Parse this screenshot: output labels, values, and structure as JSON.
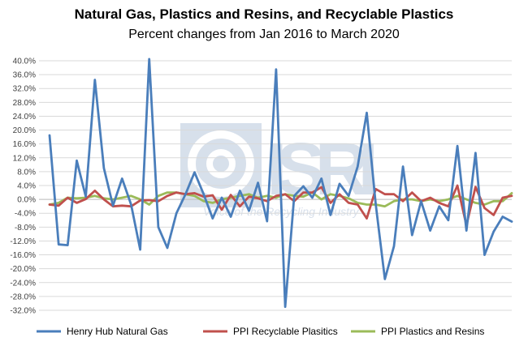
{
  "chart_data": {
    "type": "line",
    "title": "Natural Gas, Plastics and Resins, and Recyclable Plastics",
    "subtitle": "Percent changes from Jan 2016 to March 2020",
    "xlabel": "",
    "ylabel": "",
    "ylim": [
      -32,
      40
    ],
    "ytick_step": 4,
    "y_ticks": [
      "40.0%",
      "36.0%",
      "32.0%",
      "28.0%",
      "24.0%",
      "20.0%",
      "16.0%",
      "12.0%",
      "8.0%",
      "4.0%",
      "0.0%",
      "-4.0%",
      "-8.0%",
      "-12.0%",
      "-16.0%",
      "-20.0%",
      "-24.0%",
      "-28.0%",
      "-32.0%"
    ],
    "grid": true,
    "legend_position": "bottom",
    "watermark": {
      "text": "ISRI",
      "tagline": "Voice of the Recycling Industry"
    },
    "series": [
      {
        "name": "Henry Hub Natural Gas",
        "color": "#4a7ebb",
        "values": [
          18.5,
          -13,
          -13.2,
          11.2,
          0.8,
          34.5,
          9,
          -1.8,
          6,
          -1.5,
          -14.5,
          40.5,
          -8,
          -14,
          -4,
          1.5,
          7.8,
          1.5,
          -5.5,
          0.5,
          -5,
          2.5,
          -3.3,
          4.8,
          -6.3,
          37.5,
          -31,
          1,
          3.8,
          0.5,
          6,
          -4.5,
          4.5,
          1,
          9.5,
          25,
          -1.5,
          -23,
          -13.5,
          9.5,
          -10.3,
          -0.5,
          -9,
          -2,
          -6,
          15.4,
          -9,
          13.4,
          -16,
          -9.3,
          -5,
          -6.4
        ]
      },
      {
        "name": "PPI Recyclable Plasitics",
        "color": "#c0504d",
        "values": [
          -1.5,
          -1.8,
          0.5,
          -1,
          0.1,
          2.5,
          0,
          -2,
          -1.8,
          -2,
          -0.3,
          -0.2,
          -0.5,
          1,
          2,
          1.5,
          1.8,
          0.8,
          1.2,
          -3,
          1.3,
          -2,
          0.8,
          0.3,
          -0.5,
          1,
          1.5,
          -0.5,
          2,
          2,
          3.5,
          -1,
          1.5,
          -1,
          -1.5,
          -5.5,
          3,
          1.5,
          1.5,
          -0.5,
          2,
          -0.5,
          0.5,
          -1,
          -2,
          4,
          -7.5,
          3.6,
          -2.5,
          -4.5,
          0.5,
          1
        ]
      },
      {
        "name": "PPI Plastics and Resins",
        "color": "#9bbb59",
        "values": [
          -1.5,
          -1,
          0.5,
          0.3,
          0.5,
          1,
          0.3,
          0,
          0.5,
          1,
          0,
          -1.5,
          1,
          2,
          2,
          1.5,
          1,
          -0.5,
          -1,
          0,
          0.5,
          1,
          1.5,
          0.5,
          1,
          0.5,
          1.5,
          1,
          0.8,
          2,
          0,
          1.5,
          1,
          0.3,
          -1,
          -1.5,
          -1.5,
          -2,
          -0.5,
          0,
          0,
          -0.5,
          0,
          -0.5,
          0,
          1,
          0,
          -1,
          -1.5,
          -0.5,
          -0.5,
          1.8
        ]
      }
    ]
  }
}
